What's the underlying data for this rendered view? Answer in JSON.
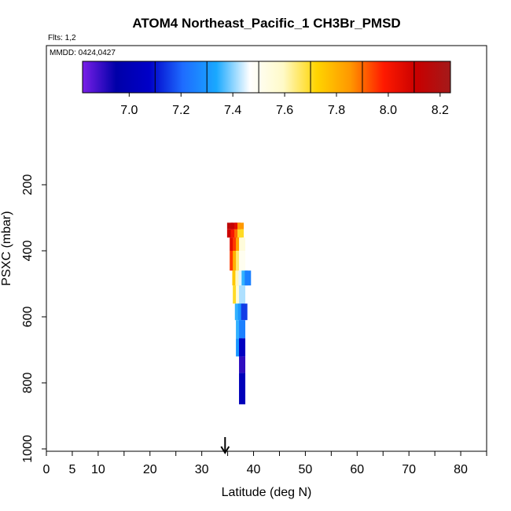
{
  "chart_data": {
    "type": "heatmap",
    "title": "ATOM4 Northeast_Pacific_1 CH3Br_PMSD",
    "flights_note": "Flts: 1,2",
    "dates_note": "MMDD: 0424,0427",
    "xlabel": "Latitude (deg N)",
    "ylabel": "PSXC (mbar)",
    "xlim": [
      0,
      85
    ],
    "ylim": [
      1000,
      0
    ],
    "x_ticks": [
      0,
      5,
      10,
      20,
      30,
      40,
      50,
      60,
      70,
      80
    ],
    "x_minor_ticks": [
      15,
      25,
      35,
      45,
      55,
      65,
      75,
      85
    ],
    "y_ticks": [
      200,
      400,
      600,
      800,
      1000
    ],
    "colorbar": {
      "range": [
        6.82,
        8.24
      ],
      "ticks": [
        7.0,
        7.2,
        7.4,
        7.6,
        7.8,
        8.0,
        8.2
      ],
      "tick_labels": [
        "7.0",
        "7.2",
        "7.4",
        "7.6",
        "7.8",
        "8.0",
        "8.2"
      ],
      "boundaries": [
        7.1,
        7.3,
        7.5,
        7.7,
        7.9,
        8.1
      ],
      "stops": [
        "#7a1fe8",
        "#0000a8",
        "#0000c8",
        "#1e6cff",
        "#19a8ff",
        "#ffffff",
        "#fffac8",
        "#ffd400",
        "#ff9800",
        "#ff1a00",
        "#c80000",
        "#a31a1a"
      ]
    },
    "marker_latitude": 34.5,
    "cells": [
      {
        "lat": 35.5,
        "p_top": 315,
        "p_bottom": 335,
        "value": 8.15
      },
      {
        "lat": 36.2,
        "p_top": 315,
        "p_bottom": 335,
        "value": 8.12
      },
      {
        "lat": 36.9,
        "p_top": 315,
        "p_bottom": 335,
        "value": 8.05
      },
      {
        "lat": 37.5,
        "p_top": 315,
        "p_bottom": 335,
        "value": 7.85
      },
      {
        "lat": 35.5,
        "p_top": 335,
        "p_bottom": 360,
        "value": 8.1
      },
      {
        "lat": 36.2,
        "p_top": 335,
        "p_bottom": 360,
        "value": 8.0
      },
      {
        "lat": 36.9,
        "p_top": 335,
        "p_bottom": 360,
        "value": 7.9
      },
      {
        "lat": 37.5,
        "p_top": 335,
        "p_bottom": 360,
        "value": 7.7
      },
      {
        "lat": 36.0,
        "p_top": 360,
        "p_bottom": 400,
        "value": 8.05
      },
      {
        "lat": 36.6,
        "p_top": 360,
        "p_bottom": 400,
        "value": 7.95
      },
      {
        "lat": 37.2,
        "p_top": 360,
        "p_bottom": 400,
        "value": 7.82
      },
      {
        "lat": 37.8,
        "p_top": 360,
        "p_bottom": 400,
        "value": 7.55
      },
      {
        "lat": 36.0,
        "p_top": 400,
        "p_bottom": 460,
        "value": 7.95
      },
      {
        "lat": 36.6,
        "p_top": 400,
        "p_bottom": 460,
        "value": 7.8
      },
      {
        "lat": 37.2,
        "p_top": 400,
        "p_bottom": 460,
        "value": 7.65
      },
      {
        "lat": 37.8,
        "p_top": 400,
        "p_bottom": 460,
        "value": 7.5
      },
      {
        "lat": 36.5,
        "p_top": 460,
        "p_bottom": 505,
        "value": 7.75
      },
      {
        "lat": 37.1,
        "p_top": 460,
        "p_bottom": 505,
        "value": 7.6
      },
      {
        "lat": 37.7,
        "p_top": 460,
        "p_bottom": 505,
        "value": 7.45
      },
      {
        "lat": 38.3,
        "p_top": 460,
        "p_bottom": 505,
        "value": 7.35
      },
      {
        "lat": 38.9,
        "p_top": 460,
        "p_bottom": 505,
        "value": 7.25
      },
      {
        "lat": 36.6,
        "p_top": 505,
        "p_bottom": 560,
        "value": 7.7
      },
      {
        "lat": 37.2,
        "p_top": 505,
        "p_bottom": 560,
        "value": 7.55
      },
      {
        "lat": 37.8,
        "p_top": 505,
        "p_bottom": 560,
        "value": 7.42
      },
      {
        "lat": 37.0,
        "p_top": 560,
        "p_bottom": 610,
        "value": 7.35
      },
      {
        "lat": 37.6,
        "p_top": 560,
        "p_bottom": 610,
        "value": 7.3
      },
      {
        "lat": 38.2,
        "p_top": 560,
        "p_bottom": 610,
        "value": 7.15
      },
      {
        "lat": 37.2,
        "p_top": 610,
        "p_bottom": 665,
        "value": 7.35
      },
      {
        "lat": 37.8,
        "p_top": 610,
        "p_bottom": 665,
        "value": 7.25
      },
      {
        "lat": 37.2,
        "p_top": 665,
        "p_bottom": 720,
        "value": 7.3
      },
      {
        "lat": 37.8,
        "p_top": 665,
        "p_bottom": 720,
        "value": 7.05
      },
      {
        "lat": 37.8,
        "p_top": 720,
        "p_bottom": 770,
        "value": 6.9
      },
      {
        "lat": 37.8,
        "p_top": 770,
        "p_bottom": 865,
        "value": 7.02
      }
    ]
  }
}
